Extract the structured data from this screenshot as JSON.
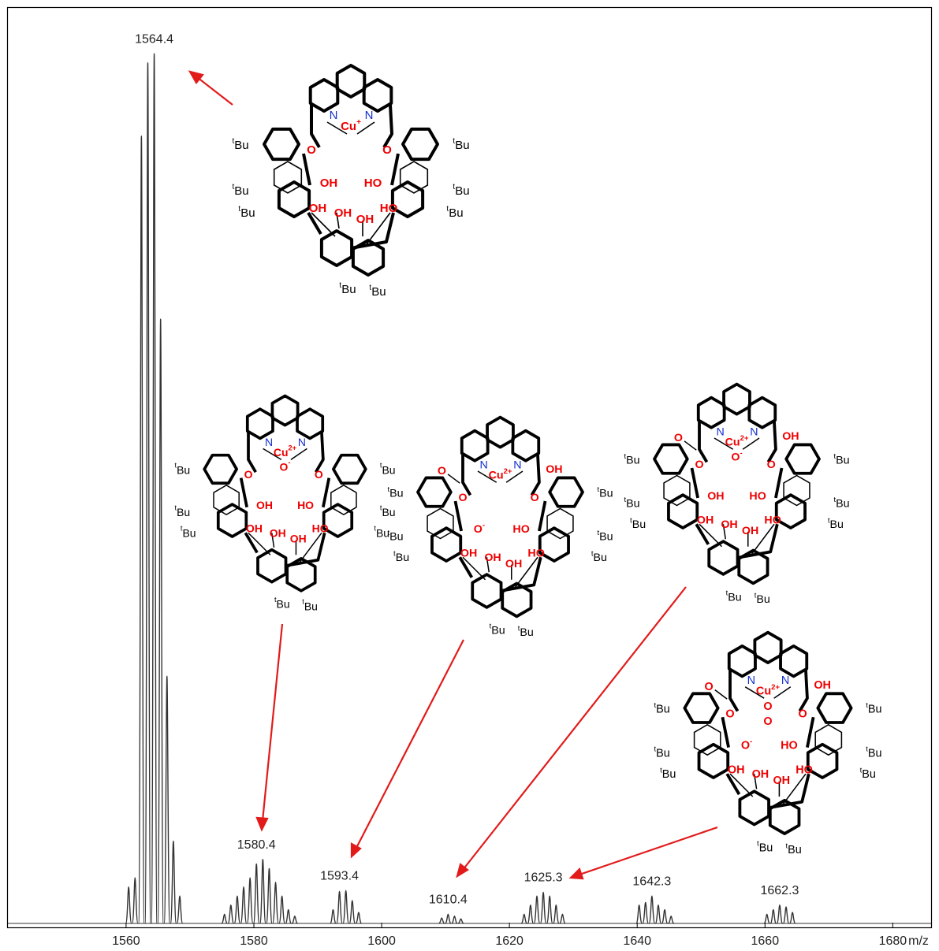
{
  "chart_data": {
    "type": "line",
    "x_label": "m/z",
    "xlim": [
      1541.5,
      1686
    ],
    "xticks": [
      1560,
      1580,
      1600,
      1620,
      1640,
      1660,
      1680
    ],
    "ylim": [
      0,
      100
    ],
    "color": "#333333",
    "x": [
      1560.4,
      1561.4,
      1562.4,
      1563.4,
      1564.4,
      1565.4,
      1566.4,
      1567.4,
      1568.4,
      1575.4,
      1576.4,
      1577.4,
      1578.4,
      1579.4,
      1580.4,
      1581.4,
      1582.4,
      1583.4,
      1584.4,
      1585.4,
      1586.4,
      1592.4,
      1593.4,
      1594.4,
      1595.4,
      1596.4,
      1609.4,
      1610.4,
      1611.4,
      1612.4,
      1622.3,
      1623.3,
      1624.3,
      1625.3,
      1626.3,
      1627.3,
      1628.3,
      1640.3,
      1641.3,
      1642.3,
      1643.3,
      1644.3,
      1645.3,
      1660.3,
      1661.3,
      1662.3,
      1663.3,
      1664.3
    ],
    "values": [
      4,
      5,
      86,
      94,
      95,
      66,
      27,
      9,
      3,
      1,
      2,
      3,
      4,
      5,
      6.5,
      7,
      6,
      4.5,
      3,
      1.5,
      0.8,
      1.5,
      3.5,
      3.6,
      2.5,
      1.2,
      0.6,
      1,
      0.8,
      0.5,
      1,
      2,
      3,
      3.4,
      3,
      2,
      1,
      2,
      2.3,
      3,
      2,
      1.5,
      0.8,
      1,
      1.5,
      2,
      1.8,
      1.2
    ],
    "annotations": [
      {
        "text": "1564.4",
        "x": 1564.4
      },
      {
        "text": "1580.4",
        "x": 1580.4
      },
      {
        "text": "1593.4",
        "x": 1593.4
      },
      {
        "text": "1610.4",
        "x": 1610.4
      },
      {
        "text": "1625.3",
        "x": 1625.3
      },
      {
        "text": "1642.3",
        "x": 1642.3
      },
      {
        "text": "1662.3",
        "x": 1662.3
      }
    ]
  },
  "structures": [
    {
      "n": [
        "N",
        "N"
      ],
      "metal": "Cu",
      "charge": "+",
      "ether": [
        "O",
        "O"
      ],
      "oh": [
        "OH",
        "HO"
      ],
      "inner": [
        "OH",
        "OH",
        "OH",
        "HO"
      ],
      "tbu": [
        "t",
        "Bu"
      ]
    },
    {
      "n": [
        "N",
        "N"
      ],
      "metal": "Cu",
      "charge": "2+",
      "ox": [
        "O"
      ],
      "ox_charge": "-",
      "ether": [
        "O",
        "O"
      ],
      "oh": [
        "OH",
        "HO"
      ],
      "inner": [
        "OH",
        "OH",
        "OH",
        "HO"
      ],
      "tbu": [
        "t",
        "Bu"
      ]
    },
    {
      "n": [
        "N",
        "N"
      ],
      "metal": "Cu",
      "charge": "2+",
      "carbonyl": "O",
      "acid": "OH",
      "ether": [
        "O",
        "O"
      ],
      "oh": [
        "O",
        "HO"
      ],
      "oh_charge": "-",
      "inner": [
        "OH",
        "OH",
        "OH",
        "HO"
      ],
      "tbu": [
        "t",
        "Bu"
      ]
    },
    {
      "n": [
        "N",
        "N"
      ],
      "metal": "Cu",
      "charge": "2+",
      "ox": [
        "O"
      ],
      "ox_charge": "-",
      "carbonyl": "O",
      "acid": "OH",
      "ether": [
        "O",
        "O"
      ],
      "oh": [
        "OH",
        "HO"
      ],
      "inner": [
        "OH",
        "OH",
        "OH",
        "HO"
      ],
      "tbu": [
        "t",
        "Bu"
      ]
    },
    {
      "n": [
        "N",
        "N"
      ],
      "metal": "Cu",
      "charge": "2+",
      "ox": [
        "O",
        "O"
      ],
      "carbonyl": "O",
      "acid": "OH",
      "ether": [
        "O",
        "O"
      ],
      "oh": [
        "O",
        "HO"
      ],
      "oh_charge": "-",
      "inner": [
        "OH",
        "OH",
        "OH",
        "HO"
      ],
      "tbu": [
        "t",
        "Bu"
      ]
    }
  ]
}
